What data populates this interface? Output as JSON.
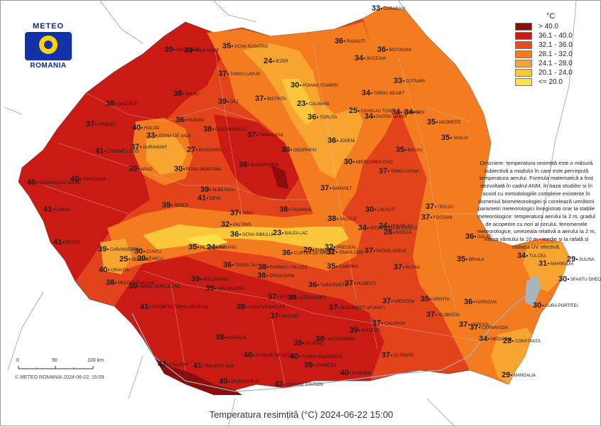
{
  "caption": "Temperatura resimțită (°C) 2024-06-22 15:00",
  "copyright": "© METEO ROMANIA 2024-06-22, 15:09",
  "logo": {
    "top": "METEO",
    "bottom": "ROMANIA",
    "icon": "meteo-romania-logo"
  },
  "legend": {
    "unit": "°C",
    "classes": [
      {
        "label": "> 40.0",
        "color": "#8b0d0d"
      },
      {
        "label": "36.1 - 40.0",
        "color": "#c91a14"
      },
      {
        "label": "32.1 - 36.0",
        "color": "#e64d16"
      },
      {
        "label": "28.1 - 32.0",
        "color": "#f47b20"
      },
      {
        "label": "24.1 - 28.0",
        "color": "#f8a430"
      },
      {
        "label": "20.1 - 24.0",
        "color": "#fbc73a"
      },
      {
        "label": "<= 20.0",
        "color": "#fde14a"
      }
    ]
  },
  "description": "Descriere: temperatura resimțită este o măsură subiectivă a modului în care este percepută temperatura aerului. Formula matematică a fost dezvoltată în cadrul ANM, în baza studiilor și în acord cu metodologiile complexe existente în domeniul biometeorologiei și corelează următorii parametri meteorologici înregistrați orar la stațiile meteorologice: temperatura aerului la 2 m, gradul de acoperire cu nori al cerului, fenomenele meteorologice, umezeala relativă a aerului la 2 m, viteza vântului la 10 m - medie și la rafală și radiația UV efectivă.",
  "scale_bar": {
    "labels": [
      "0",
      "50",
      "100 km"
    ]
  },
  "stations": [
    {
      "name": "CARABANI",
      "value": "33"
    },
    {
      "name": "OCNA SUGATAG",
      "value": "35"
    },
    {
      "name": "BAIA MARE",
      "value": "39"
    },
    {
      "name": "SATU MARE",
      "value": "39"
    },
    {
      "name": "IEZER",
      "value": "24"
    },
    {
      "name": "RADAUTI",
      "value": "36"
    },
    {
      "name": "BOTOSANI",
      "value": "36"
    },
    {
      "name": "SUCEAVA",
      "value": "34"
    },
    {
      "name": "COTNARI",
      "value": "33"
    },
    {
      "name": "TARGU LAPUS",
      "value": "37"
    },
    {
      "name": "POIANA STAMPEI",
      "value": "30"
    },
    {
      "name": "TARGU NEAMT",
      "value": "34"
    },
    {
      "name": "ZALAU",
      "value": "38"
    },
    {
      "name": "DEJ",
      "value": "39"
    },
    {
      "name": "BISTRITA",
      "value": "37"
    },
    {
      "name": "CALIMANI",
      "value": "23"
    },
    {
      "name": "IASI",
      "value": "34"
    },
    {
      "name": "SACUENI",
      "value": "38"
    },
    {
      "name": "PIATRA NEAMT",
      "value": "34"
    },
    {
      "name": "ROMAN",
      "value": "34"
    },
    {
      "name": "CEAHLAU TOACA",
      "value": "25"
    },
    {
      "name": "TOPLITA",
      "value": "36"
    },
    {
      "name": "NEGRESTI",
      "value": "35"
    },
    {
      "name": "HOLOD",
      "value": "40"
    },
    {
      "name": "ORADEA",
      "value": "37"
    },
    {
      "name": "STANA DE VALE",
      "value": "33"
    },
    {
      "name": "HUEDIN",
      "value": "36"
    },
    {
      "name": "CLUJ-NAPOCA",
      "value": "38"
    },
    {
      "name": "TARNAVENI",
      "value": "37"
    },
    {
      "name": "JOSENI",
      "value": "36"
    },
    {
      "name": "VASLUI",
      "value": "35"
    },
    {
      "name": "CHISINEU CRIS",
      "value": "41"
    },
    {
      "name": "GURAHONT",
      "value": "37"
    },
    {
      "name": "BAISOARA",
      "value": "27"
    },
    {
      "name": "BACAU",
      "value": "35"
    },
    {
      "name": "MIERCUREA CIUC",
      "value": "30"
    },
    {
      "name": "ODORHEIU",
      "value": "38"
    },
    {
      "name": "ARAD",
      "value": "39"
    },
    {
      "name": "ROSIA MONTANA",
      "value": "30"
    },
    {
      "name": "DUMBRAVENI",
      "value": "36"
    },
    {
      "name": "TARGU OCNA",
      "value": "37"
    },
    {
      "name": "SANNICOLAU MARE",
      "value": "40"
    },
    {
      "name": "TIMISOARA",
      "value": "40"
    },
    {
      "name": "ALBA IULIA",
      "value": "39"
    },
    {
      "name": "BARAOLT",
      "value": "37"
    },
    {
      "name": "DEVA",
      "value": "41"
    },
    {
      "name": "SEBES",
      "value": "39"
    },
    {
      "name": "SIBIU",
      "value": "37"
    },
    {
      "name": "FAGARAS",
      "value": "38"
    },
    {
      "name": "LACAUTI",
      "value": "30"
    },
    {
      "name": "TECUCI",
      "value": "37"
    },
    {
      "name": "LUGOJ",
      "value": "41"
    },
    {
      "name": "PALTINIS",
      "value": "32"
    },
    {
      "name": "BALEA LAC",
      "value": "23"
    },
    {
      "name": "SACELE",
      "value": "38"
    },
    {
      "name": "INTORSURA BUZAULUI",
      "value": "34"
    },
    {
      "name": "BISOCA",
      "value": "28"
    },
    {
      "name": "FOCSANI",
      "value": "37"
    },
    {
      "name": "RESITA",
      "value": "41"
    },
    {
      "name": "CARANSEBES",
      "value": "39"
    },
    {
      "name": "OCNA SIBIULUI",
      "value": "36"
    },
    {
      "name": "SINAIA 1500",
      "value": "32"
    },
    {
      "name": "PENTELEU",
      "value": "24"
    },
    {
      "name": "GALATI",
      "value": "36"
    },
    {
      "name": "PETROSANI",
      "value": "35"
    },
    {
      "name": "PARANG",
      "value": "24"
    },
    {
      "name": "CUNTU",
      "value": "30"
    },
    {
      "name": "TARCU",
      "value": "20"
    },
    {
      "name": "FUNDATA",
      "value": "29"
    },
    {
      "name": "PREDEAL",
      "value": "32"
    },
    {
      "name": "CURTEA DE ARGES",
      "value": "36"
    },
    {
      "name": "PATARLAGELE",
      "value": "37"
    },
    {
      "name": "BRAILA",
      "value": "35"
    },
    {
      "name": "TULCEA",
      "value": "34"
    },
    {
      "name": "SULINA",
      "value": "29"
    },
    {
      "name": "SEMENIC",
      "value": "25"
    },
    {
      "name": "ORAVITA",
      "value": "40"
    },
    {
      "name": "TARGU JIU",
      "value": "36"
    },
    {
      "name": "POLOVRAGI",
      "value": "39"
    },
    {
      "name": "RAMNICU VALCEA",
      "value": "38"
    },
    {
      "name": "CAMPINA",
      "value": "35"
    },
    {
      "name": "BUZAU",
      "value": "37"
    },
    {
      "name": "MAHMUDIA",
      "value": "31"
    },
    {
      "name": "SFANTU GHEORGHE",
      "value": "30"
    },
    {
      "name": "BAILE HERCULANE",
      "value": "39"
    },
    {
      "name": "MOLDOVA VECHE",
      "value": "38"
    },
    {
      "name": "APA NEAGRA",
      "value": "39"
    },
    {
      "name": "DRAGASANI",
      "value": "38"
    },
    {
      "name": "STEFANESTI",
      "value": "38"
    },
    {
      "name": "TARGOVISTE",
      "value": "36"
    },
    {
      "name": "PLOIESTI",
      "value": "37"
    },
    {
      "name": "PITESTI",
      "value": "37"
    },
    {
      "name": "URZICENI",
      "value": "37"
    },
    {
      "name": "GRIVITA",
      "value": "35"
    },
    {
      "name": "HARSOVA",
      "value": "36"
    },
    {
      "name": "GURA PORTITEI",
      "value": "30"
    },
    {
      "name": "DROBETA TURNU SEVERIN",
      "value": "41"
    },
    {
      "name": "CRAIOVA BACLES",
      "value": "38"
    },
    {
      "name": "BUCURESTI AFUMATI",
      "value": "37"
    },
    {
      "name": "SLOBOZIA",
      "value": "37"
    },
    {
      "name": "BECHET",
      "value": "37"
    },
    {
      "name": "CALARASI",
      "value": "37"
    },
    {
      "name": "FETESTI",
      "value": "37"
    },
    {
      "name": "CERNAVODA",
      "value": "37"
    },
    {
      "name": "BAILESTI",
      "value": "39"
    },
    {
      "name": "CARACAL",
      "value": "38"
    },
    {
      "name": "ALEXANDRIA",
      "value": "38"
    },
    {
      "name": "GIURGIU",
      "value": "39"
    },
    {
      "name": "OLTENITA",
      "value": "37"
    },
    {
      "name": "MEDGIDIA",
      "value": "34"
    },
    {
      "name": "CONSTANTA",
      "value": "28"
    },
    {
      "name": "CALAFAT",
      "value": "42"
    },
    {
      "name": "ROSIORI DE VEDE",
      "value": "40"
    },
    {
      "name": "TURNU MAGURELE",
      "value": "40"
    },
    {
      "name": "ZIMNICEA",
      "value": "39"
    },
    {
      "name": "CORABIA",
      "value": "40"
    },
    {
      "name": "MANGALIA",
      "value": "29"
    },
    {
      "name": "BAILESTI SUD",
      "value": "41"
    },
    {
      "name": "GIURGIU SUD",
      "value": "40"
    },
    {
      "name": "DANUBE STATION",
      "value": "42"
    }
  ]
}
